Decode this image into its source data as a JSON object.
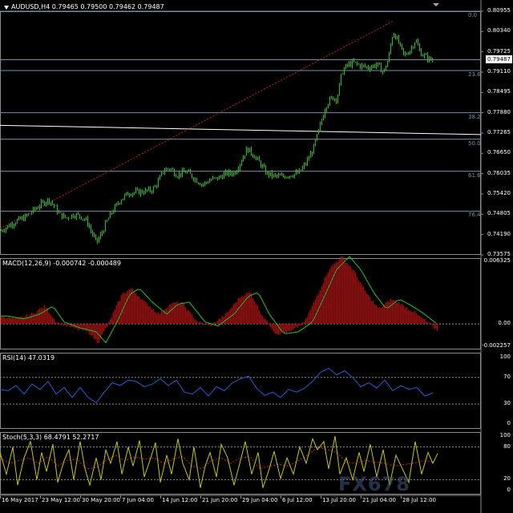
{
  "chart_data": {
    "type": "candlestick",
    "symbol_header": "AUDUSD,H4  0.79465 0.79500 0.79462 0.79487",
    "current_price": "0.79487",
    "price_axis": [
      "0.80955",
      "0.80340",
      "0.79725",
      "0.79110",
      "0.78495",
      "0.77880",
      "0.77265",
      "0.76650",
      "0.76035",
      "0.75420",
      "0.74805",
      "0.74190",
      "0.73575"
    ],
    "ylim": [
      0.73575,
      0.80955
    ],
    "x_labels": [
      "16 May 2017",
      "23 May 12:00",
      "30 May 20:00",
      "7 Jun 04:00",
      "14 Jun 12:00",
      "21 Jun 20:00",
      "29 Jun 04:00",
      "6 Jul 12:00",
      "13 Jul 20:00",
      "21 Jul 04:00",
      "28 Jul 12:00"
    ],
    "price_path": [
      [
        0,
        0.743
      ],
      [
        10,
        0.7445
      ],
      [
        20,
        0.746
      ],
      [
        30,
        0.747
      ],
      [
        40,
        0.749
      ],
      [
        50,
        0.751
      ],
      [
        60,
        0.7525
      ],
      [
        66,
        0.751
      ],
      [
        74,
        0.748
      ],
      [
        82,
        0.747
      ],
      [
        92,
        0.748
      ],
      [
        100,
        0.7475
      ],
      [
        108,
        0.746
      ],
      [
        114,
        0.7425
      ],
      [
        120,
        0.7395
      ],
      [
        126,
        0.742
      ],
      [
        132,
        0.7455
      ],
      [
        140,
        0.749
      ],
      [
        150,
        0.7525
      ],
      [
        160,
        0.7545
      ],
      [
        170,
        0.7548
      ],
      [
        180,
        0.755
      ],
      [
        190,
        0.7555
      ],
      [
        196,
        0.7575
      ],
      [
        204,
        0.7615
      ],
      [
        212,
        0.762
      ],
      [
        220,
        0.76
      ],
      [
        232,
        0.761
      ],
      [
        242,
        0.759
      ],
      [
        252,
        0.757
      ],
      [
        262,
        0.7585
      ],
      [
        272,
        0.759
      ],
      [
        282,
        0.7605
      ],
      [
        292,
        0.7605
      ],
      [
        300,
        0.764
      ],
      [
        308,
        0.768
      ],
      [
        316,
        0.766
      ],
      [
        324,
        0.7635
      ],
      [
        332,
        0.7605
      ],
      [
        342,
        0.7595
      ],
      [
        352,
        0.7595
      ],
      [
        362,
        0.76
      ],
      [
        372,
        0.7605
      ],
      [
        380,
        0.763
      ],
      [
        390,
        0.7675
      ],
      [
        398,
        0.774
      ],
      [
        406,
        0.781
      ],
      [
        414,
        0.7835
      ],
      [
        420,
        0.783
      ],
      [
        426,
        0.791
      ],
      [
        432,
        0.793
      ],
      [
        440,
        0.794
      ],
      [
        450,
        0.793
      ],
      [
        460,
        0.7925
      ],
      [
        470,
        0.7935
      ],
      [
        478,
        0.791
      ],
      [
        484,
        0.795
      ],
      [
        490,
        0.8035
      ],
      [
        496,
        0.8005
      ],
      [
        504,
        0.796
      ],
      [
        512,
        0.798
      ],
      [
        518,
        0.801
      ],
      [
        524,
        0.797
      ],
      [
        532,
        0.7955
      ],
      [
        540,
        0.7945
      ]
    ],
    "fib_levels": [
      {
        "label": "0.0",
        "value": 0.80955
      },
      {
        "label": "23.6",
        "value": 0.7916
      },
      {
        "label": "38.2",
        "value": 0.7788
      },
      {
        "label": "50.0",
        "value": 0.7708
      },
      {
        "label": "61.6",
        "value": 0.7611
      },
      {
        "label": "76.4",
        "value": 0.749
      }
    ],
    "hline_price": 0.79487,
    "trend_line": [
      [
        0,
        0.7437
      ],
      [
        490,
        0.8065
      ]
    ],
    "white_line": [
      [
        0,
        0.775
      ],
      [
        600,
        0.7722
      ]
    ],
    "macd": {
      "label": "MACD(12,26,9) -0.000742 -0.000489",
      "axis": [
        "0.006325",
        "0.00",
        "-0.002257"
      ],
      "ylim": [
        -0.002257,
        0.006325
      ],
      "path": [
        [
          0,
          0.0008
        ],
        [
          20,
          0.0005
        ],
        [
          40,
          0.001
        ],
        [
          56,
          0.0018
        ],
        [
          70,
          0.0002
        ],
        [
          90,
          -0.0004
        ],
        [
          110,
          -0.0008
        ],
        [
          122,
          -0.0019
        ],
        [
          136,
          0.0002
        ],
        [
          152,
          0.003
        ],
        [
          164,
          0.0036
        ],
        [
          180,
          0.0022
        ],
        [
          198,
          0.001
        ],
        [
          212,
          0.002
        ],
        [
          226,
          0.0022
        ],
        [
          246,
          0.0002
        ],
        [
          262,
          -0.0002
        ],
        [
          282,
          0.001
        ],
        [
          300,
          0.0028
        ],
        [
          312,
          0.0032
        ],
        [
          326,
          0.001
        ],
        [
          344,
          -0.001
        ],
        [
          362,
          -0.0008
        ],
        [
          380,
          0.0002
        ],
        [
          396,
          0.003
        ],
        [
          410,
          0.0055
        ],
        [
          426,
          0.0068
        ],
        [
          440,
          0.0055
        ],
        [
          456,
          0.0032
        ],
        [
          472,
          0.0015
        ],
        [
          488,
          0.0025
        ],
        [
          500,
          0.002
        ],
        [
          516,
          0.0012
        ],
        [
          532,
          0.0002
        ],
        [
          546,
          -0.0007
        ]
      ]
    },
    "rsi": {
      "label": "RSI(14) 47.0319",
      "axis": [
        "100",
        "70",
        "30",
        "0"
      ],
      "levels": [
        30,
        70
      ],
      "path": [
        [
          0,
          52
        ],
        [
          10,
          50
        ],
        [
          20,
          58
        ],
        [
          30,
          45
        ],
        [
          40,
          60
        ],
        [
          50,
          52
        ],
        [
          60,
          64
        ],
        [
          70,
          45
        ],
        [
          80,
          55
        ],
        [
          90,
          40
        ],
        [
          100,
          55
        ],
        [
          110,
          40
        ],
        [
          120,
          32
        ],
        [
          130,
          48
        ],
        [
          140,
          62
        ],
        [
          150,
          58
        ],
        [
          160,
          66
        ],
        [
          170,
          64
        ],
        [
          180,
          56
        ],
        [
          190,
          60
        ],
        [
          200,
          68
        ],
        [
          210,
          58
        ],
        [
          220,
          66
        ],
        [
          230,
          48
        ],
        [
          240,
          45
        ],
        [
          250,
          55
        ],
        [
          260,
          42
        ],
        [
          270,
          56
        ],
        [
          280,
          50
        ],
        [
          290,
          62
        ],
        [
          300,
          68
        ],
        [
          310,
          72
        ],
        [
          320,
          54
        ],
        [
          330,
          43
        ],
        [
          340,
          48
        ],
        [
          350,
          40
        ],
        [
          360,
          52
        ],
        [
          370,
          48
        ],
        [
          380,
          54
        ],
        [
          390,
          64
        ],
        [
          400,
          78
        ],
        [
          410,
          84
        ],
        [
          420,
          74
        ],
        [
          430,
          80
        ],
        [
          440,
          70
        ],
        [
          450,
          56
        ],
        [
          460,
          62
        ],
        [
          470,
          54
        ],
        [
          480,
          66
        ],
        [
          490,
          50
        ],
        [
          500,
          58
        ],
        [
          510,
          52
        ],
        [
          520,
          55
        ],
        [
          530,
          42
        ],
        [
          540,
          47
        ]
      ]
    },
    "stoch": {
      "label": "Stoch(5,3,3) 68.4791 52.2717",
      "axis": [
        "100",
        "80",
        "20",
        "0"
      ],
      "levels": [
        20,
        80
      ],
      "main_path": [
        [
          0,
          70
        ],
        [
          8,
          30
        ],
        [
          16,
          80
        ],
        [
          22,
          10
        ],
        [
          30,
          60
        ],
        [
          38,
          90
        ],
        [
          46,
          20
        ],
        [
          52,
          70
        ],
        [
          58,
          35
        ],
        [
          66,
          85
        ],
        [
          72,
          15
        ],
        [
          80,
          55
        ],
        [
          86,
          75
        ],
        [
          92,
          20
        ],
        [
          100,
          90
        ],
        [
          106,
          40
        ],
        [
          112,
          10
        ],
        [
          120,
          60
        ],
        [
          126,
          20
        ],
        [
          132,
          75
        ],
        [
          138,
          50
        ],
        [
          146,
          90
        ],
        [
          152,
          30
        ],
        [
          160,
          80
        ],
        [
          166,
          45
        ],
        [
          174,
          92
        ],
        [
          180,
          25
        ],
        [
          188,
          60
        ],
        [
          194,
          88
        ],
        [
          200,
          15
        ],
        [
          208,
          65
        ],
        [
          214,
          30
        ],
        [
          222,
          95
        ],
        [
          228,
          50
        ],
        [
          236,
          20
        ],
        [
          242,
          80
        ],
        [
          250,
          5
        ],
        [
          256,
          45
        ],
        [
          262,
          70
        ],
        [
          270,
          25
        ],
        [
          276,
          85
        ],
        [
          284,
          60
        ],
        [
          292,
          10
        ],
        [
          300,
          55
        ],
        [
          306,
          90
        ],
        [
          314,
          30
        ],
        [
          322,
          70
        ],
        [
          328,
          5
        ],
        [
          336,
          40
        ],
        [
          342,
          72
        ],
        [
          350,
          22
        ],
        [
          358,
          60
        ],
        [
          366,
          30
        ],
        [
          374,
          80
        ],
        [
          382,
          50
        ],
        [
          390,
          95
        ],
        [
          396,
          75
        ],
        [
          404,
          90
        ],
        [
          410,
          40
        ],
        [
          418,
          100
        ],
        [
          424,
          30
        ],
        [
          432,
          60
        ],
        [
          440,
          20
        ],
        [
          448,
          70
        ],
        [
          454,
          35
        ],
        [
          462,
          85
        ],
        [
          470,
          25
        ],
        [
          478,
          75
        ],
        [
          486,
          10
        ],
        [
          494,
          65
        ],
        [
          502,
          40
        ],
        [
          510,
          15
        ],
        [
          518,
          90
        ],
        [
          526,
          30
        ],
        [
          534,
          70
        ],
        [
          540,
          50
        ],
        [
          546,
          68
        ]
      ],
      "signal_path": [
        [
          0,
          60
        ],
        [
          12,
          50
        ],
        [
          24,
          55
        ],
        [
          36,
          60
        ],
        [
          48,
          50
        ],
        [
          60,
          62
        ],
        [
          72,
          45
        ],
        [
          84,
          55
        ],
        [
          96,
          58
        ],
        [
          108,
          40
        ],
        [
          120,
          42
        ],
        [
          132,
          55
        ],
        [
          144,
          65
        ],
        [
          156,
          55
        ],
        [
          168,
          62
        ],
        [
          180,
          58
        ],
        [
          192,
          60
        ],
        [
          204,
          50
        ],
        [
          216,
          58
        ],
        [
          228,
          62
        ],
        [
          240,
          45
        ],
        [
          252,
          40
        ],
        [
          264,
          55
        ],
        [
          276,
          60
        ],
        [
          288,
          50
        ],
        [
          300,
          60
        ],
        [
          312,
          62
        ],
        [
          324,
          40
        ],
        [
          336,
          45
        ],
        [
          348,
          48
        ],
        [
          360,
          45
        ],
        [
          372,
          55
        ],
        [
          384,
          65
        ],
        [
          396,
          80
        ],
        [
          408,
          75
        ],
        [
          420,
          70
        ],
        [
          432,
          52
        ],
        [
          444,
          50
        ],
        [
          456,
          55
        ],
        [
          468,
          52
        ],
        [
          480,
          50
        ],
        [
          492,
          45
        ],
        [
          504,
          48
        ],
        [
          516,
          50
        ],
        [
          528,
          55
        ],
        [
          540,
          52
        ]
      ]
    }
  },
  "watermark_text": "FX678",
  "colors": {
    "candles": "#19c819",
    "macd_bars": "#cc0000",
    "macd_signal": "#1ec81e",
    "rsi_line": "#1e5fd2",
    "stoch_main": "#c8c800",
    "stoch_signal": "#cc2020",
    "fib": "#6f8fa8",
    "trend": "#cc2020"
  }
}
